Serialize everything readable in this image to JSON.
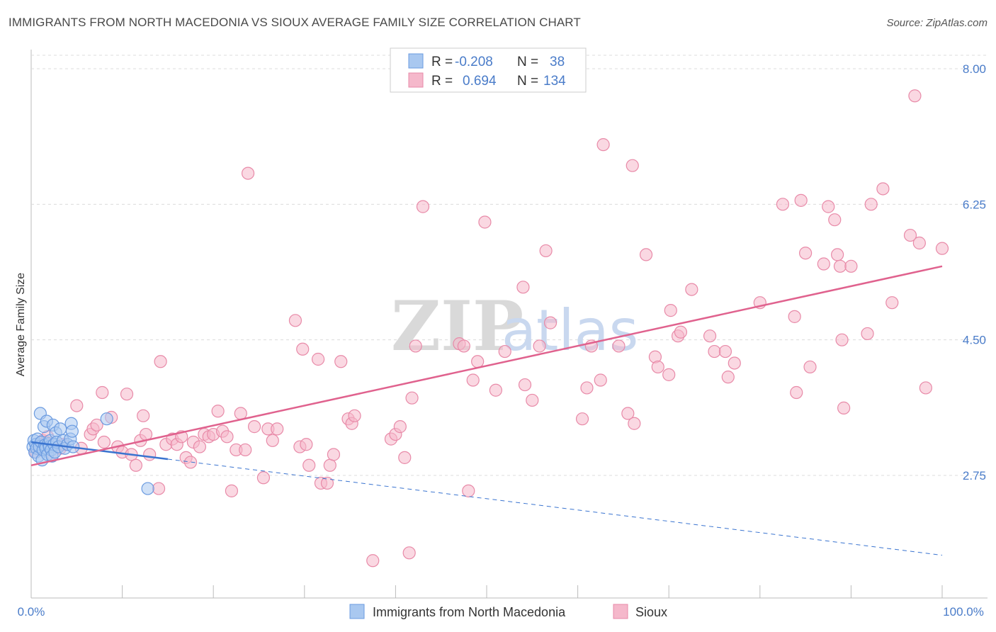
{
  "title": "IMMIGRANTS FROM NORTH MACEDONIA VS SIOUX AVERAGE FAMILY SIZE CORRELATION CHART",
  "source": "Source: ZipAtlas.com",
  "watermark": {
    "zip": "ZIP",
    "atlas": "atlas"
  },
  "colors": {
    "blue_fill": "#a9c8f0",
    "blue_stroke": "#6b9be0",
    "blue_line": "#3a74d0",
    "pink_fill": "#f5b8cb",
    "pink_stroke": "#e88aa8",
    "pink_line": "#e0628e",
    "grid": "#dcdcdc",
    "tick_text": "#4a7cc9"
  },
  "chart_data": {
    "type": "scatter",
    "xlabel": "",
    "ylabel": "Average Family Size",
    "xlim": [
      0,
      100
    ],
    "ylim": [
      1.5,
      8.25
    ],
    "y_ticks": [
      2.75,
      4.5,
      6.25,
      8.0
    ],
    "y_tick_labels": [
      "2.75",
      "4.50",
      "6.25",
      "8.00"
    ],
    "x_tick_labels": {
      "left": "0.0%",
      "right": "100.0%"
    },
    "legend": {
      "r_label": "R =",
      "n_label": "N =",
      "entries": [
        {
          "name": "Immigrants from North Macedonia",
          "r": "-0.208",
          "n": "38"
        },
        {
          "name": "Sioux",
          "r": "0.694",
          "n": "134"
        }
      ]
    },
    "series": [
      {
        "name": "Immigrants from North Macedonia",
        "trend": {
          "x": [
            0,
            15
          ],
          "y": [
            3.18,
            2.96
          ],
          "dashed_to": [
            100,
            1.72
          ]
        },
        "points": [
          [
            0.2,
            3.12
          ],
          [
            0.3,
            3.2
          ],
          [
            0.4,
            3.05
          ],
          [
            0.5,
            3.15
          ],
          [
            0.6,
            3.1
          ],
          [
            0.7,
            3.22
          ],
          [
            0.8,
            3.0
          ],
          [
            0.9,
            3.12
          ],
          [
            1.0,
            3.55
          ],
          [
            1.1,
            3.18
          ],
          [
            1.2,
            2.95
          ],
          [
            1.3,
            3.08
          ],
          [
            1.4,
            3.38
          ],
          [
            1.5,
            3.14
          ],
          [
            1.6,
            3.1
          ],
          [
            1.7,
            3.45
          ],
          [
            1.8,
            3.02
          ],
          [
            1.9,
            3.16
          ],
          [
            2.0,
            3.12
          ],
          [
            2.1,
            3.2
          ],
          [
            2.2,
            3.08
          ],
          [
            2.3,
            3.0
          ],
          [
            2.4,
            3.4
          ],
          [
            2.5,
            3.15
          ],
          [
            2.6,
            3.05
          ],
          [
            2.7,
            3.3
          ],
          [
            2.8,
            3.18
          ],
          [
            3.0,
            3.12
          ],
          [
            3.2,
            3.35
          ],
          [
            3.5,
            3.2
          ],
          [
            3.7,
            3.1
          ],
          [
            4.0,
            3.15
          ],
          [
            4.3,
            3.22
          ],
          [
            4.6,
            3.12
          ],
          [
            4.4,
            3.42
          ],
          [
            4.5,
            3.32
          ],
          [
            8.3,
            3.48
          ],
          [
            12.8,
            2.58
          ]
        ]
      },
      {
        "name": "Sioux",
        "trend": {
          "x": [
            0,
            100
          ],
          "y": [
            2.88,
            5.45
          ]
        },
        "points": [
          [
            0.5,
            3.05
          ],
          [
            0.8,
            3.1
          ],
          [
            1.0,
            3.12
          ],
          [
            1.3,
            3.2
          ],
          [
            1.6,
            3.18
          ],
          [
            1.8,
            3.25
          ],
          [
            2.1,
            3.12
          ],
          [
            2.3,
            3.0
          ],
          [
            3.2,
            3.1
          ],
          [
            3.5,
            3.15
          ],
          [
            5.0,
            3.65
          ],
          [
            5.5,
            3.1
          ],
          [
            6.5,
            3.28
          ],
          [
            6.8,
            3.35
          ],
          [
            7.2,
            3.4
          ],
          [
            7.8,
            3.82
          ],
          [
            8.0,
            3.18
          ],
          [
            8.8,
            3.5
          ],
          [
            9.5,
            3.12
          ],
          [
            10.0,
            3.05
          ],
          [
            10.5,
            3.8
          ],
          [
            11.0,
            3.02
          ],
          [
            11.5,
            2.88
          ],
          [
            12.0,
            3.2
          ],
          [
            12.3,
            3.52
          ],
          [
            12.6,
            3.28
          ],
          [
            13.0,
            3.02
          ],
          [
            14.0,
            2.58
          ],
          [
            14.2,
            4.22
          ],
          [
            14.8,
            3.15
          ],
          [
            15.5,
            3.22
          ],
          [
            16.0,
            3.15
          ],
          [
            16.5,
            3.25
          ],
          [
            17.0,
            2.98
          ],
          [
            17.5,
            2.92
          ],
          [
            17.8,
            3.18
          ],
          [
            18.5,
            3.12
          ],
          [
            19.0,
            3.28
          ],
          [
            19.5,
            3.25
          ],
          [
            20.0,
            3.28
          ],
          [
            20.5,
            3.58
          ],
          [
            21.0,
            3.32
          ],
          [
            21.5,
            3.25
          ],
          [
            22.0,
            2.55
          ],
          [
            22.5,
            3.08
          ],
          [
            23.0,
            3.55
          ],
          [
            23.5,
            3.08
          ],
          [
            23.8,
            6.65
          ],
          [
            24.5,
            3.38
          ],
          [
            25.5,
            2.72
          ],
          [
            26.0,
            3.35
          ],
          [
            26.5,
            3.2
          ],
          [
            27.0,
            3.35
          ],
          [
            29.0,
            4.75
          ],
          [
            29.5,
            3.12
          ],
          [
            29.8,
            4.38
          ],
          [
            30.2,
            3.15
          ],
          [
            30.5,
            2.88
          ],
          [
            31.5,
            4.25
          ],
          [
            31.8,
            2.65
          ],
          [
            32.5,
            2.65
          ],
          [
            32.8,
            2.88
          ],
          [
            33.2,
            3.02
          ],
          [
            34.0,
            4.22
          ],
          [
            34.8,
            3.48
          ],
          [
            35.2,
            3.42
          ],
          [
            35.5,
            3.52
          ],
          [
            37.5,
            1.65
          ],
          [
            39.5,
            3.22
          ],
          [
            40.0,
            3.28
          ],
          [
            40.5,
            3.38
          ],
          [
            41.0,
            2.98
          ],
          [
            41.5,
            1.75
          ],
          [
            41.8,
            3.75
          ],
          [
            42.2,
            4.42
          ],
          [
            43.0,
            6.22
          ],
          [
            47.0,
            4.45
          ],
          [
            47.5,
            4.42
          ],
          [
            48.0,
            2.55
          ],
          [
            48.5,
            3.98
          ],
          [
            49.0,
            4.22
          ],
          [
            49.8,
            6.02
          ],
          [
            51.0,
            3.85
          ],
          [
            52.0,
            4.35
          ],
          [
            54.0,
            5.18
          ],
          [
            54.2,
            3.92
          ],
          [
            55.0,
            3.72
          ],
          [
            55.8,
            4.42
          ],
          [
            56.5,
            5.65
          ],
          [
            57.0,
            4.72
          ],
          [
            60.5,
            3.48
          ],
          [
            61.0,
            3.88
          ],
          [
            61.5,
            4.42
          ],
          [
            62.5,
            3.98
          ],
          [
            62.8,
            7.02
          ],
          [
            64.5,
            4.42
          ],
          [
            65.5,
            3.55
          ],
          [
            66.0,
            6.75
          ],
          [
            66.2,
            3.42
          ],
          [
            67.5,
            5.6
          ],
          [
            68.5,
            4.28
          ],
          [
            68.8,
            4.15
          ],
          [
            70.0,
            4.05
          ],
          [
            70.2,
            4.88
          ],
          [
            71.0,
            4.55
          ],
          [
            71.3,
            4.6
          ],
          [
            72.5,
            5.15
          ],
          [
            74.5,
            4.55
          ],
          [
            75.0,
            4.35
          ],
          [
            76.2,
            4.35
          ],
          [
            76.5,
            4.02
          ],
          [
            77.2,
            4.2
          ],
          [
            80.0,
            4.98
          ],
          [
            82.5,
            6.25
          ],
          [
            83.8,
            4.8
          ],
          [
            84.0,
            3.82
          ],
          [
            84.5,
            6.3
          ],
          [
            85.0,
            5.62
          ],
          [
            85.5,
            4.15
          ],
          [
            87.0,
            5.48
          ],
          [
            87.5,
            6.22
          ],
          [
            88.2,
            6.05
          ],
          [
            88.5,
            5.6
          ],
          [
            88.8,
            5.45
          ],
          [
            89.0,
            4.5
          ],
          [
            89.2,
            3.62
          ],
          [
            90.0,
            5.45
          ],
          [
            91.8,
            4.58
          ],
          [
            92.2,
            6.25
          ],
          [
            93.5,
            6.45
          ],
          [
            94.5,
            4.98
          ],
          [
            96.5,
            5.85
          ],
          [
            97.0,
            7.65
          ],
          [
            97.5,
            5.75
          ],
          [
            98.2,
            3.88
          ],
          [
            100.0,
            5.68
          ]
        ]
      }
    ]
  }
}
